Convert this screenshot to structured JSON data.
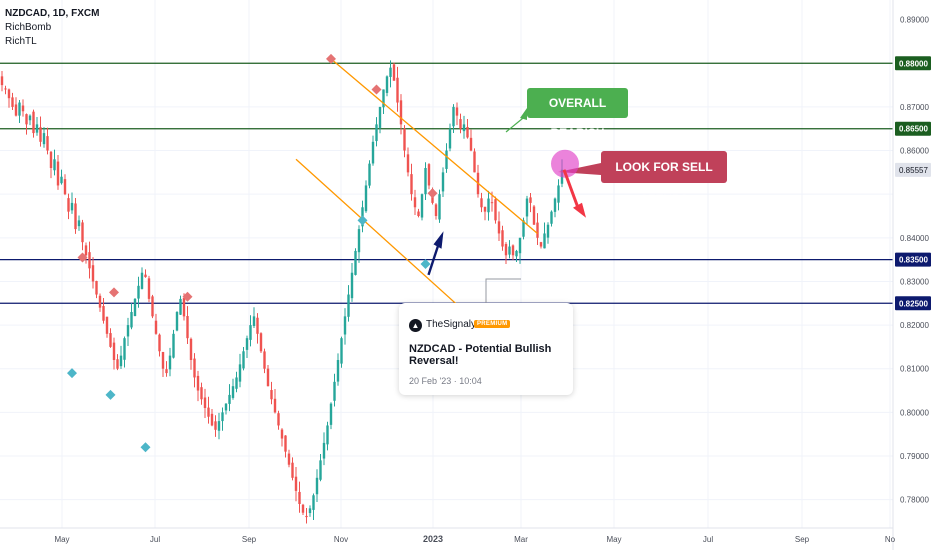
{
  "header": {
    "symbol": "NZDCAD, 1D, FXCM",
    "indicators": [
      "RichBomb",
      "RichTL"
    ]
  },
  "annotations": {
    "overall": "OVERALL BEARISH",
    "sell": "LOOK FOR SELL SETUPS"
  },
  "idea_card": {
    "author": "TheSignalyst",
    "badge": "PREMIUM",
    "title": "NZDCAD - Potential Bullish Reversal!",
    "date": "20 Feb '23 · 10:04"
  },
  "chart_data": {
    "type": "candlestick",
    "ylim": [
      0.7735,
      0.8945
    ],
    "y_ticks": [
      "0.89000",
      "0.87000",
      "0.86000",
      "0.84000",
      "0.83000",
      "0.82000",
      "0.81000",
      "0.80000",
      "0.79000",
      "0.78000"
    ],
    "x_ticks": [
      "May",
      "Jul",
      "Sep",
      "Nov",
      "2023",
      "Mar",
      "May",
      "Jul",
      "Sep",
      "No"
    ],
    "current_price": "0.85557",
    "horizontal_levels": [
      {
        "label": "0.88000",
        "value": 0.88,
        "color": "#1b5e20"
      },
      {
        "label": "0.86500",
        "value": 0.865,
        "color": "#1b5e20"
      },
      {
        "label": "0.83500",
        "value": 0.835,
        "color": "#0d1a6e"
      },
      {
        "label": "0.82500",
        "value": 0.825,
        "color": "#0d1a6e"
      }
    ],
    "close_path": [
      0.875,
      0.874,
      0.872,
      0.87,
      0.868,
      0.871,
      0.869,
      0.866,
      0.868,
      0.864,
      0.866,
      0.862,
      0.864,
      0.86,
      0.856,
      0.858,
      0.852,
      0.854,
      0.85,
      0.846,
      0.848,
      0.842,
      0.844,
      0.839,
      0.836,
      0.833,
      0.83,
      0.827,
      0.824,
      0.821,
      0.818,
      0.815,
      0.812,
      0.81,
      0.813,
      0.817,
      0.82,
      0.823,
      0.826,
      0.829,
      0.832,
      0.831,
      0.826,
      0.822,
      0.818,
      0.814,
      0.81,
      0.809,
      0.813,
      0.818,
      0.823,
      0.826,
      0.822,
      0.817,
      0.812,
      0.808,
      0.805,
      0.803,
      0.801,
      0.799,
      0.797,
      0.796,
      0.798,
      0.8,
      0.802,
      0.804,
      0.806,
      0.808,
      0.811,
      0.814,
      0.817,
      0.82,
      0.822,
      0.818,
      0.814,
      0.81,
      0.806,
      0.803,
      0.8,
      0.797,
      0.794,
      0.791,
      0.788,
      0.785,
      0.782,
      0.779,
      0.777,
      0.776,
      0.778,
      0.781,
      0.785,
      0.789,
      0.793,
      0.797,
      0.802,
      0.807,
      0.812,
      0.817,
      0.822,
      0.827,
      0.832,
      0.837,
      0.842,
      0.847,
      0.852,
      0.857,
      0.862,
      0.866,
      0.87,
      0.874,
      0.877,
      0.879,
      0.876,
      0.871,
      0.866,
      0.86,
      0.855,
      0.85,
      0.847,
      0.845,
      0.85,
      0.856,
      0.852,
      0.848,
      0.845,
      0.85,
      0.855,
      0.86,
      0.865,
      0.87,
      0.868,
      0.865,
      0.866,
      0.863,
      0.86,
      0.855,
      0.85,
      0.847,
      0.846,
      0.849,
      0.848,
      0.844,
      0.841,
      0.838,
      0.836,
      0.838,
      0.836,
      0.837,
      0.84,
      0.844,
      0.849,
      0.848,
      0.843,
      0.84,
      0.838,
      0.841,
      0.843,
      0.846,
      0.849,
      0.852,
      0.8556
    ],
    "pivot_markers": [
      {
        "type": "high",
        "x_index": 23,
        "value": 0.8355
      },
      {
        "type": "high",
        "x_index": 32,
        "value": 0.8275
      },
      {
        "type": "high",
        "x_index": 53,
        "value": 0.8265
      },
      {
        "type": "high",
        "x_index": 94,
        "value": 0.881
      },
      {
        "type": "high",
        "x_index": 107,
        "value": 0.874
      },
      {
        "type": "high",
        "x_index": 123,
        "value": 0.8502
      },
      {
        "type": "low",
        "x_index": 20,
        "value": 0.809
      },
      {
        "type": "low",
        "x_index": 31,
        "value": 0.804
      },
      {
        "type": "low",
        "x_index": 41,
        "value": 0.792
      },
      {
        "type": "low",
        "x_index": 103,
        "value": 0.844
      },
      {
        "type": "low",
        "x_index": 121,
        "value": 0.834
      }
    ],
    "channel": {
      "upper": [
        [
          0.881,
          94
        ],
        [
          0.841,
          153
        ]
      ],
      "lower": [
        [
          0.858,
          84
        ],
        [
          0.816,
          142
        ]
      ]
    }
  }
}
